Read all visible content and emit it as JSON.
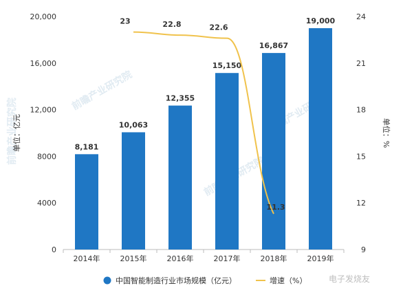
{
  "chart_data": {
    "type": "bar",
    "categories": [
      "2014年",
      "2015年",
      "2016年",
      "2017年",
      "2018年",
      "2019年"
    ],
    "series": [
      {
        "name": "中国智能制造行业市场规模（亿元）",
        "type": "bar",
        "axis": "left",
        "color": "#1f77c4",
        "values": [
          8181,
          10063,
          12355,
          15150,
          16867,
          19000
        ],
        "labels": [
          "8,181",
          "10,063",
          "12,355",
          "15,150",
          "16,867",
          "19,000"
        ]
      },
      {
        "name": "增速（%）",
        "type": "line",
        "axis": "right",
        "color": "#f0c24b",
        "values": [
          null,
          23,
          22.8,
          22.6,
          11.3,
          null
        ],
        "labels": [
          "",
          "23",
          "22.8",
          "22.6",
          "11.3",
          ""
        ]
      }
    ],
    "ylabel": "单位：亿元",
    "y2label": "单位：%",
    "ylim": [
      0,
      20000
    ],
    "y2lim": [
      9,
      24
    ],
    "yticks": [
      "0",
      "4000",
      "8000",
      "12,000",
      "16,000",
      "20,000"
    ],
    "y2ticks": [
      "9",
      "12",
      "15",
      "18",
      "21",
      "24"
    ],
    "grid": false,
    "legend_position": "bottom"
  },
  "watermark": {
    "text": "前瞻产业研究院",
    "corner_mark": "电子发烧友"
  }
}
